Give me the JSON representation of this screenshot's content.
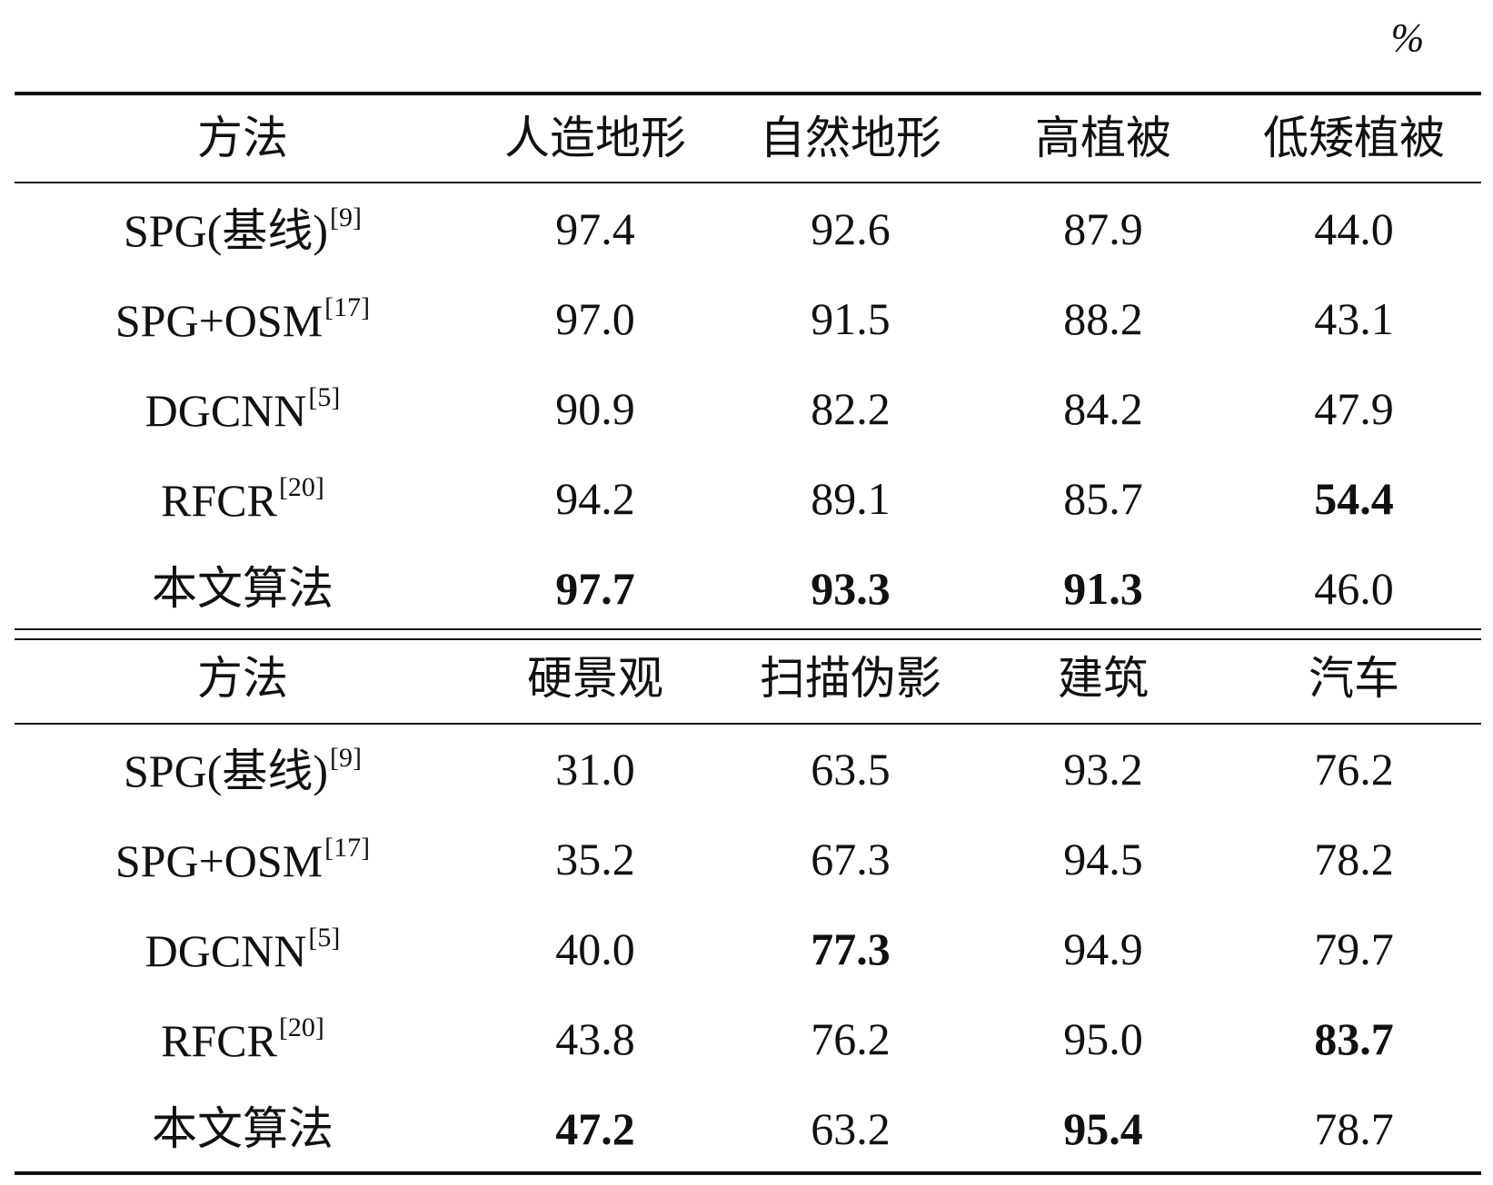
{
  "unit": "%",
  "sections": [
    {
      "header": [
        "方法",
        "人造地形",
        "自然地形",
        "高植被",
        "低矮植被"
      ],
      "rows": [
        {
          "method": "SPG(基线)",
          "ref": "[9]",
          "values": [
            "97.4",
            "92.6",
            "87.9",
            "44.0"
          ],
          "bold": [
            false,
            false,
            false,
            false
          ]
        },
        {
          "method": "SPG+OSM",
          "ref": "[17]",
          "values": [
            "97.0",
            "91.5",
            "88.2",
            "43.1"
          ],
          "bold": [
            false,
            false,
            false,
            false
          ]
        },
        {
          "method": "DGCNN",
          "ref": "[5]",
          "values": [
            "90.9",
            "82.2",
            "84.2",
            "47.9"
          ],
          "bold": [
            false,
            false,
            false,
            false
          ]
        },
        {
          "method": "RFCR",
          "ref": "[20]",
          "values": [
            "94.2",
            "89.1",
            "85.7",
            "54.4"
          ],
          "bold": [
            false,
            false,
            false,
            true
          ]
        },
        {
          "method": "本文算法",
          "values": [
            "97.7",
            "93.3",
            "91.3",
            "46.0"
          ],
          "bold": [
            true,
            true,
            true,
            false
          ]
        }
      ]
    },
    {
      "header": [
        "方法",
        "硬景观",
        "扫描伪影",
        "建筑",
        "汽车"
      ],
      "rows": [
        {
          "method": "SPG(基线)",
          "ref": "[9]",
          "values": [
            "31.0",
            "63.5",
            "93.2",
            "76.2"
          ],
          "bold": [
            false,
            false,
            false,
            false
          ]
        },
        {
          "method": "SPG+OSM",
          "ref": "[17]",
          "values": [
            "35.2",
            "67.3",
            "94.5",
            "78.2"
          ],
          "bold": [
            false,
            false,
            false,
            false
          ]
        },
        {
          "method": "DGCNN",
          "ref": "[5]",
          "values": [
            "40.0",
            "77.3",
            "94.9",
            "79.7"
          ],
          "bold": [
            false,
            true,
            false,
            false
          ]
        },
        {
          "method": "RFCR",
          "ref": "[20]",
          "values": [
            "43.8",
            "76.2",
            "95.0",
            "83.7"
          ],
          "bold": [
            false,
            false,
            false,
            true
          ]
        },
        {
          "method": "本文算法",
          "values": [
            "47.2",
            "63.2",
            "95.4",
            "78.7"
          ],
          "bold": [
            true,
            false,
            true,
            false
          ]
        }
      ]
    }
  ]
}
